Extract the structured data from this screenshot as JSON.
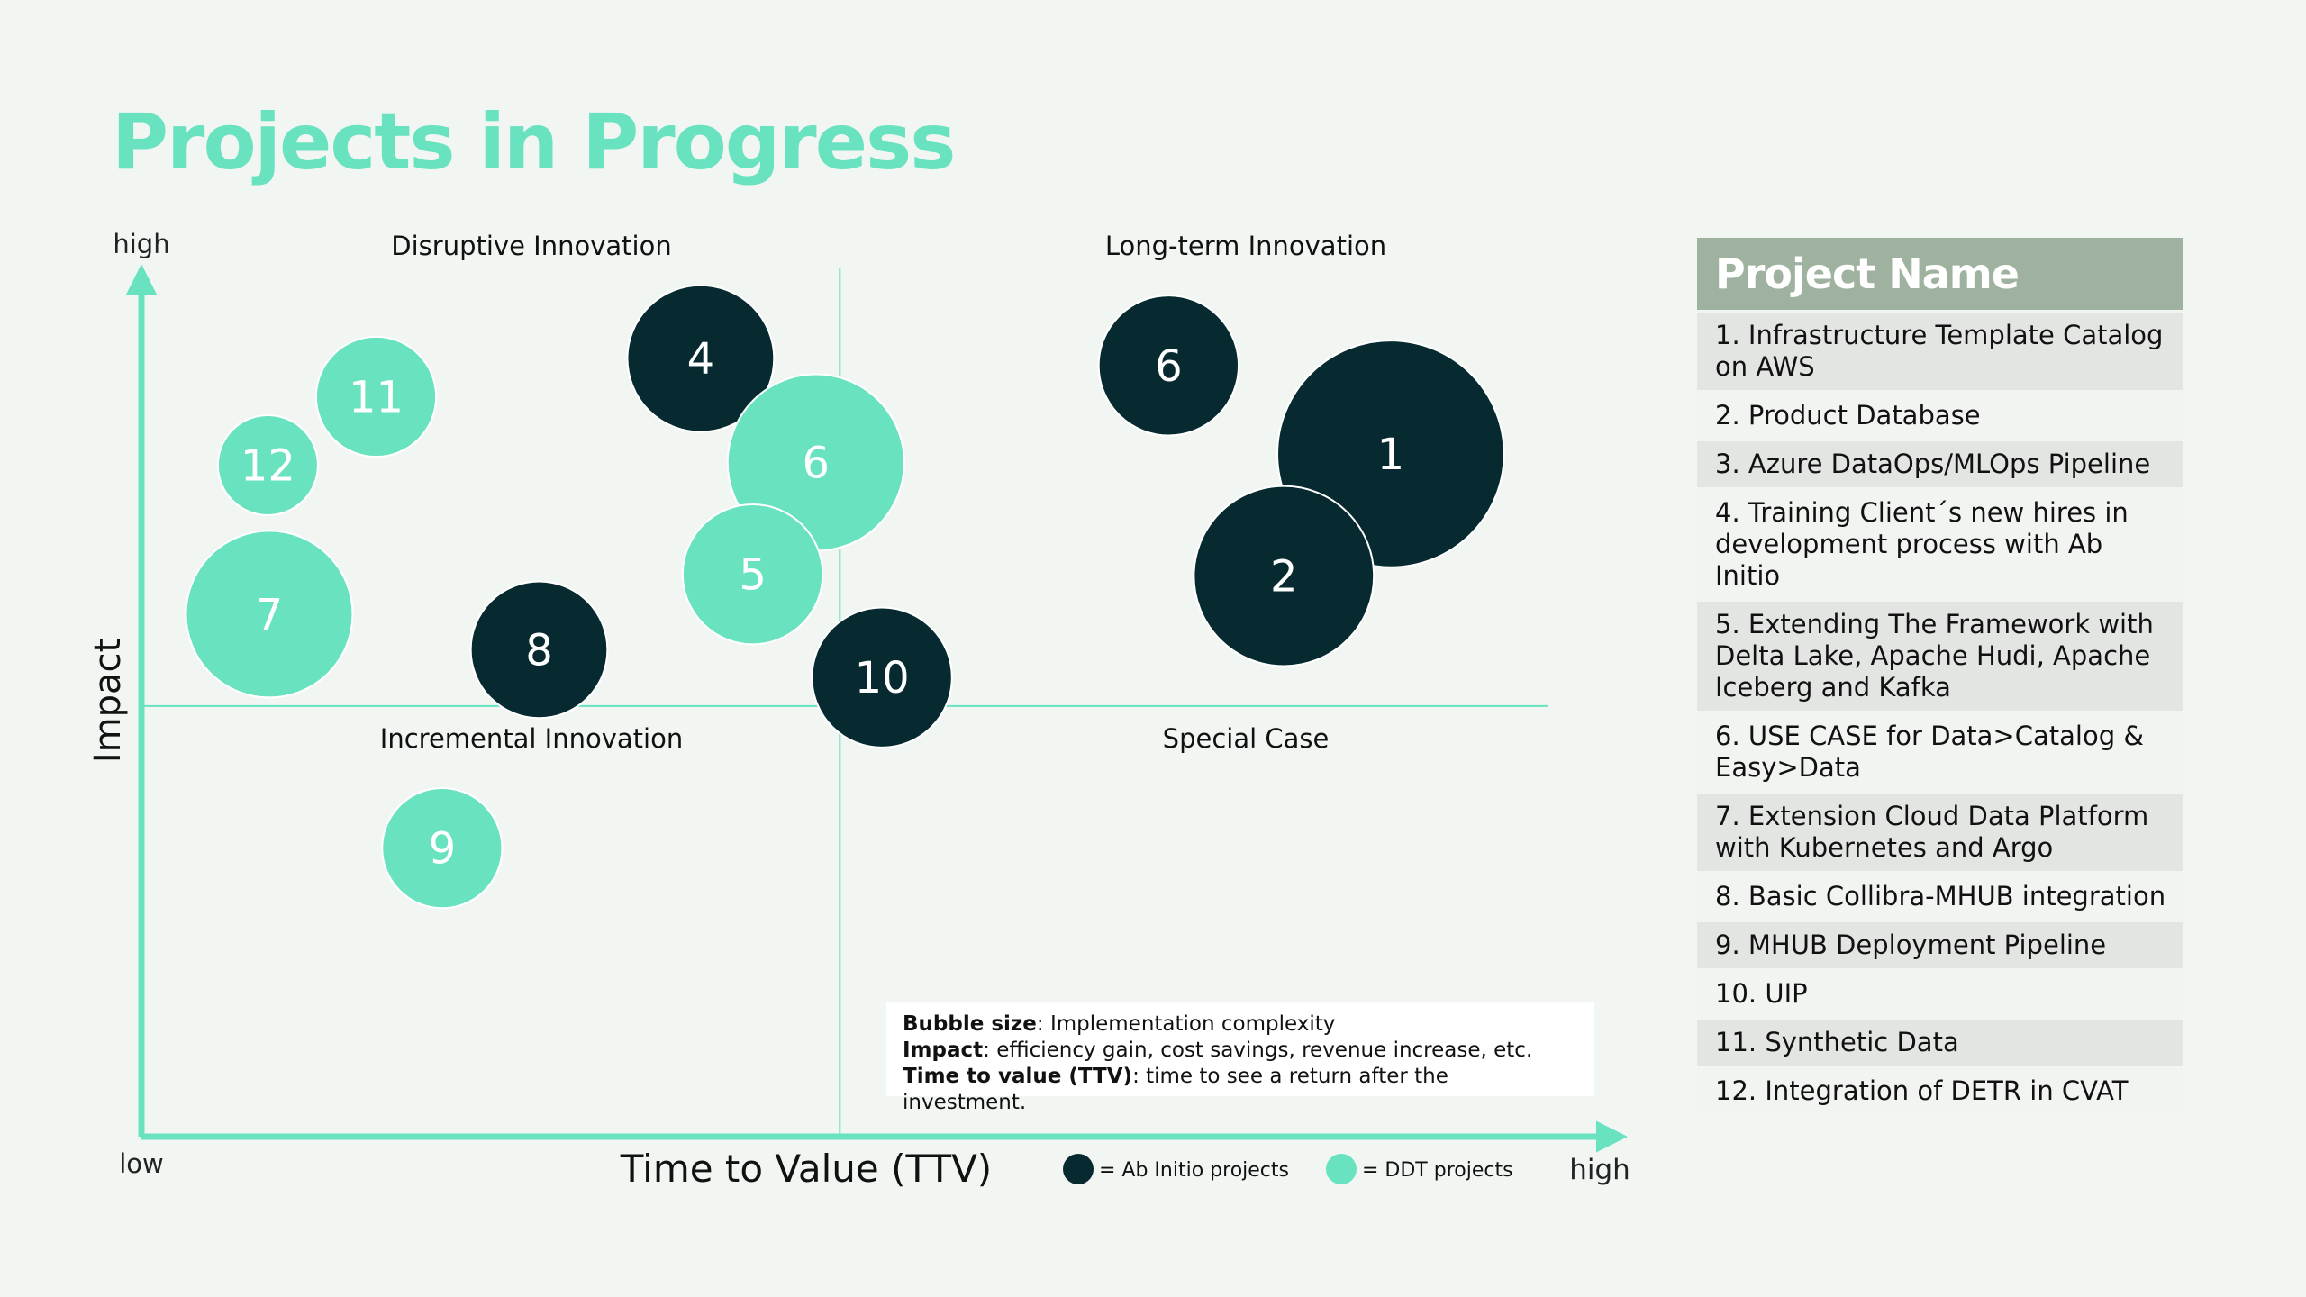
{
  "page": {
    "title": "Projects in Progress"
  },
  "chart_data": {
    "type": "scatter",
    "title": "",
    "xlabel": "Time to Value (TTV)",
    "ylabel": "Impact",
    "x_low_label": "low",
    "x_high_label": "high",
    "y_high_label": "high",
    "xlim": [
      0,
      100
    ],
    "ylim": [
      0,
      100
    ],
    "quadrants": [
      {
        "label": "Disruptive Innovation"
      },
      {
        "label": "Long-term Innovation"
      },
      {
        "label": "Incremental Innovation"
      },
      {
        "label": "Special Case"
      }
    ],
    "quadrant_split": {
      "x": 49.7,
      "y": 49.7
    },
    "series": [
      {
        "name": "= Ab Initio projects",
        "color": "#062a30",
        "points": [
          {
            "label": "4",
            "x": 39.8,
            "y": 89.8,
            "size": 44
          },
          {
            "label": "6",
            "x": 73.1,
            "y": 89.0,
            "size": 42
          },
          {
            "label": "1",
            "x": 88.9,
            "y": 78.8,
            "size": 68
          },
          {
            "label": "2",
            "x": 81.3,
            "y": 64.7,
            "size": 54
          },
          {
            "label": "8",
            "x": 28.3,
            "y": 56.2,
            "size": 41
          },
          {
            "label": "10",
            "x": 52.7,
            "y": 53.0,
            "size": 42
          }
        ]
      },
      {
        "name": "= DDT projects",
        "color": "#69e2bf",
        "points": [
          {
            "label": "11",
            "x": 16.7,
            "y": 85.4,
            "size": 36
          },
          {
            "label": "12",
            "x": 9.0,
            "y": 77.5,
            "size": 30
          },
          {
            "label": "6",
            "x": 48.0,
            "y": 77.8,
            "size": 53
          },
          {
            "label": "5",
            "x": 43.5,
            "y": 64.9,
            "size": 42
          },
          {
            "label": "7",
            "x": 9.1,
            "y": 60.3,
            "size": 50
          },
          {
            "label": "9",
            "x": 21.4,
            "y": 33.3,
            "size": 36
          }
        ]
      }
    ]
  },
  "notes": {
    "bubble_key": "Bubble size",
    "bubble_text": ": Implementation complexity",
    "impact_key": "Impact",
    "impact_text": ": efficiency gain, cost savings, revenue increase, etc.",
    "ttv_key": "Time to value (TTV)",
    "ttv_text": ": time to see a return after the investment."
  },
  "table": {
    "header": "Project Name",
    "rows": [
      "1. Infrastructure Template Catalog on AWS",
      "2. Product Database",
      "3. Azure DataOps/MLOps Pipeline",
      "4. Training Client´s new hires in development process with Ab Initio",
      "5. Extending The Framework with Delta Lake, Apache Hudi, Apache Iceberg and Kafka",
      "6. USE CASE for Data>Catalog & Easy>Data",
      "7. Extension Cloud Data Platform with Kubernetes and Argo",
      "8. Basic Collibra-MHUB integration",
      "9. MHUB Deployment Pipeline",
      "10. UIP",
      "11. Synthetic Data",
      "12. Integration of DETR in CVAT"
    ]
  }
}
